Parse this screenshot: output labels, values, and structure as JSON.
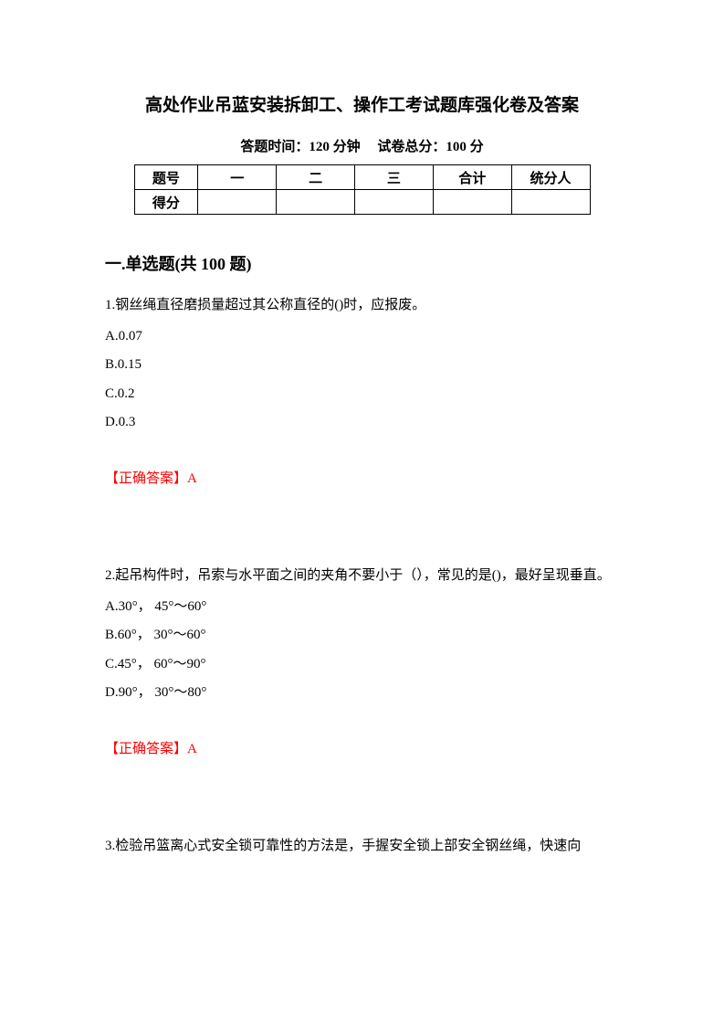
{
  "title": "高处作业吊蓝安装拆卸工、操作工考试题库强化卷及答案",
  "subtitle": "答题时间：120 分钟　 试卷总分：100 分",
  "scoreTable": {
    "row1": {
      "label": "题号",
      "c1": "一",
      "c2": "二",
      "c3": "三",
      "c4": "合计",
      "c5": "统分人"
    },
    "row2": {
      "label": "得分",
      "c1": "",
      "c2": "",
      "c3": "",
      "c4": "",
      "c5": ""
    }
  },
  "sectionHeading": "一.单选题(共 100 题)",
  "q1": {
    "text": "1.钢丝绳直径磨损量超过其公称直径的()时，应报废。",
    "optA": "A.0.07",
    "optB": "B.0.15",
    "optC": "C.0.2",
    "optD": "D.0.3",
    "answerLabel": "【正确答案】",
    "answerValue": "A"
  },
  "q2": {
    "text": "2.起吊构件时，吊索与水平面之间的夹角不要小于（），常见的是()，最好呈现垂直。",
    "optA": "A.30°， 45°～60°",
    "optB": "B.60°， 30°～60°",
    "optC": "C.45°， 60°～90°",
    "optD": "D.90°， 30°～80°",
    "answerLabel": "【正确答案】",
    "answerValue": "A"
  },
  "q3": {
    "text": "3.检验吊篮离心式安全锁可靠性的方法是，手握安全锁上部安全钢丝绳，快速向"
  },
  "colors": {
    "text": "#000000",
    "answer": "#ff0000",
    "background": "#ffffff",
    "border": "#000000"
  }
}
